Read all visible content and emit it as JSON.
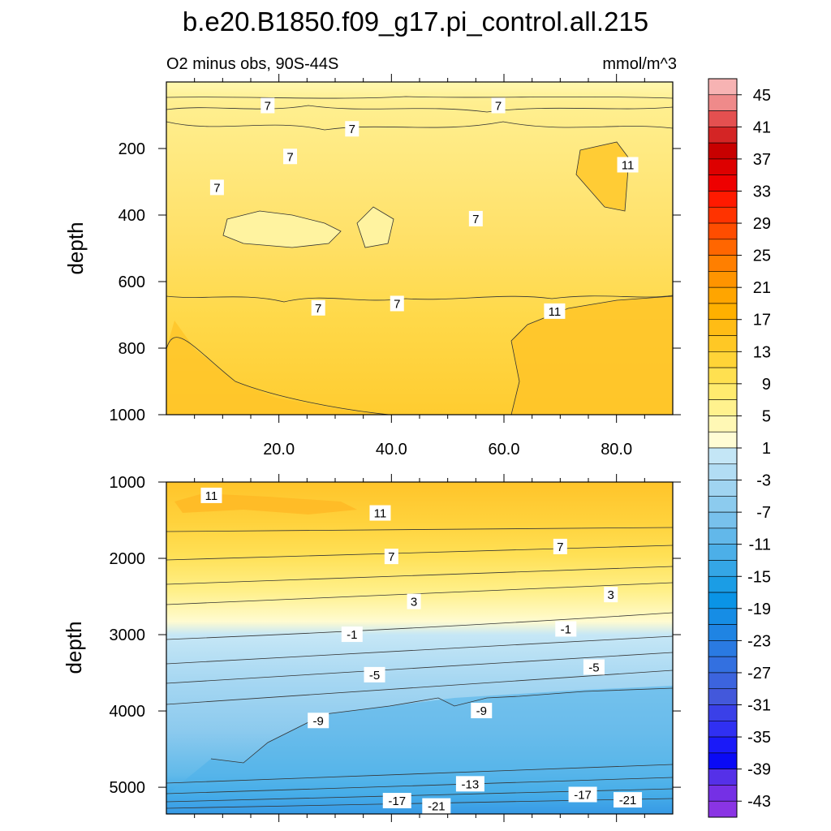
{
  "title": "b.e20.B1850.f09_g17.pi_control.all.215",
  "subtitle_left": "O2 minus obs, 90S-44S",
  "subtitle_right": "mmol/m^3",
  "chart_data": [
    {
      "type": "contour",
      "panel": "upper",
      "ylabel": "depth",
      "xlim": [
        0,
        90
      ],
      "ylim": [
        1000,
        0
      ],
      "x_ticks": [
        "20.0",
        "40.0",
        "60.0",
        "80.0"
      ],
      "x_tick_values": [
        20,
        40,
        60,
        80
      ],
      "y_ticks": [
        "200",
        "400",
        "600",
        "800",
        "1000"
      ],
      "y_tick_values": [
        200,
        400,
        600,
        800,
        1000
      ],
      "contour_labels": [
        {
          "text": "7",
          "x": 18,
          "y": 72
        },
        {
          "text": "7",
          "x": 59,
          "y": 72
        },
        {
          "text": "7",
          "x": 33,
          "y": 142
        },
        {
          "text": "7",
          "x": 22,
          "y": 225
        },
        {
          "text": "7",
          "x": 9,
          "y": 318
        },
        {
          "text": "11",
          "x": 82,
          "y": 250
        },
        {
          "text": "7",
          "x": 55,
          "y": 412
        },
        {
          "text": "7",
          "x": 27,
          "y": 680
        },
        {
          "text": "7",
          "x": 41,
          "y": 667
        },
        {
          "text": "11",
          "x": 69,
          "y": 690
        }
      ]
    },
    {
      "type": "contour",
      "panel": "lower",
      "ylabel": "depth",
      "xlim": [
        0,
        90
      ],
      "ylim": [
        5350,
        1000
      ],
      "y_ticks": [
        "1000",
        "2000",
        "3000",
        "4000",
        "5000"
      ],
      "y_tick_values": [
        1000,
        2000,
        3000,
        4000,
        5000
      ],
      "contour_labels": [
        {
          "text": "11",
          "x": 8,
          "y": 1180
        },
        {
          "text": "11",
          "x": 38,
          "y": 1410
        },
        {
          "text": "7",
          "x": 40,
          "y": 1980
        },
        {
          "text": "7",
          "x": 70,
          "y": 1850
        },
        {
          "text": "3",
          "x": 44,
          "y": 2570
        },
        {
          "text": "3",
          "x": 79,
          "y": 2480
        },
        {
          "text": "-1",
          "x": 33,
          "y": 3000
        },
        {
          "text": "-1",
          "x": 71,
          "y": 2930
        },
        {
          "text": "-5",
          "x": 37,
          "y": 3530
        },
        {
          "text": "-5",
          "x": 76,
          "y": 3430
        },
        {
          "text": "-9",
          "x": 27,
          "y": 4130
        },
        {
          "text": "-9",
          "x": 56,
          "y": 4000
        },
        {
          "text": "-13",
          "x": 54,
          "y": 4960
        },
        {
          "text": "-17",
          "x": 41,
          "y": 5180
        },
        {
          "text": "-17",
          "x": 74,
          "y": 5100
        },
        {
          "text": "-21",
          "x": 48,
          "y": 5250
        },
        {
          "text": "-21",
          "x": 82,
          "y": 5170
        }
      ]
    }
  ],
  "colorbar": {
    "labels": [
      "45",
      "41",
      "37",
      "33",
      "29",
      "25",
      "21",
      "17",
      "13",
      "9",
      "5",
      "1",
      "-3",
      "-7",
      "-11",
      "-15",
      "-19",
      "-23",
      "-27",
      "-31",
      "-35",
      "-39",
      "-43"
    ],
    "colors": [
      "#f7b3b3",
      "#ef8a8a",
      "#e45050",
      "#d42525",
      "#c80000",
      "#dd0000",
      "#ee0000",
      "#ff1a00",
      "#ff3300",
      "#ff4d00",
      "#ff6600",
      "#ff7f00",
      "#ff9400",
      "#ffa500",
      "#ffb000",
      "#ffbc15",
      "#ffc825",
      "#ffd437",
      "#ffe050",
      "#ffeb6e",
      "#fff28e",
      "#fff8b5",
      "#fffcd4",
      "#c4e6f6",
      "#b2ddf4",
      "#a0d4f1",
      "#8ccbee",
      "#78c1ec",
      "#62b8ea",
      "#4cafe8",
      "#34a6e6",
      "#1b9de5",
      "#0a94e6",
      "#168de5",
      "#1f84e3",
      "#2a7ae2",
      "#3370e0",
      "#3c64de",
      "#4358db",
      "#3a40e8",
      "#3030f2",
      "#1a1af8",
      "#0a0af5",
      "#5530e8",
      "#7530e5",
      "#8a34e4"
    ]
  }
}
